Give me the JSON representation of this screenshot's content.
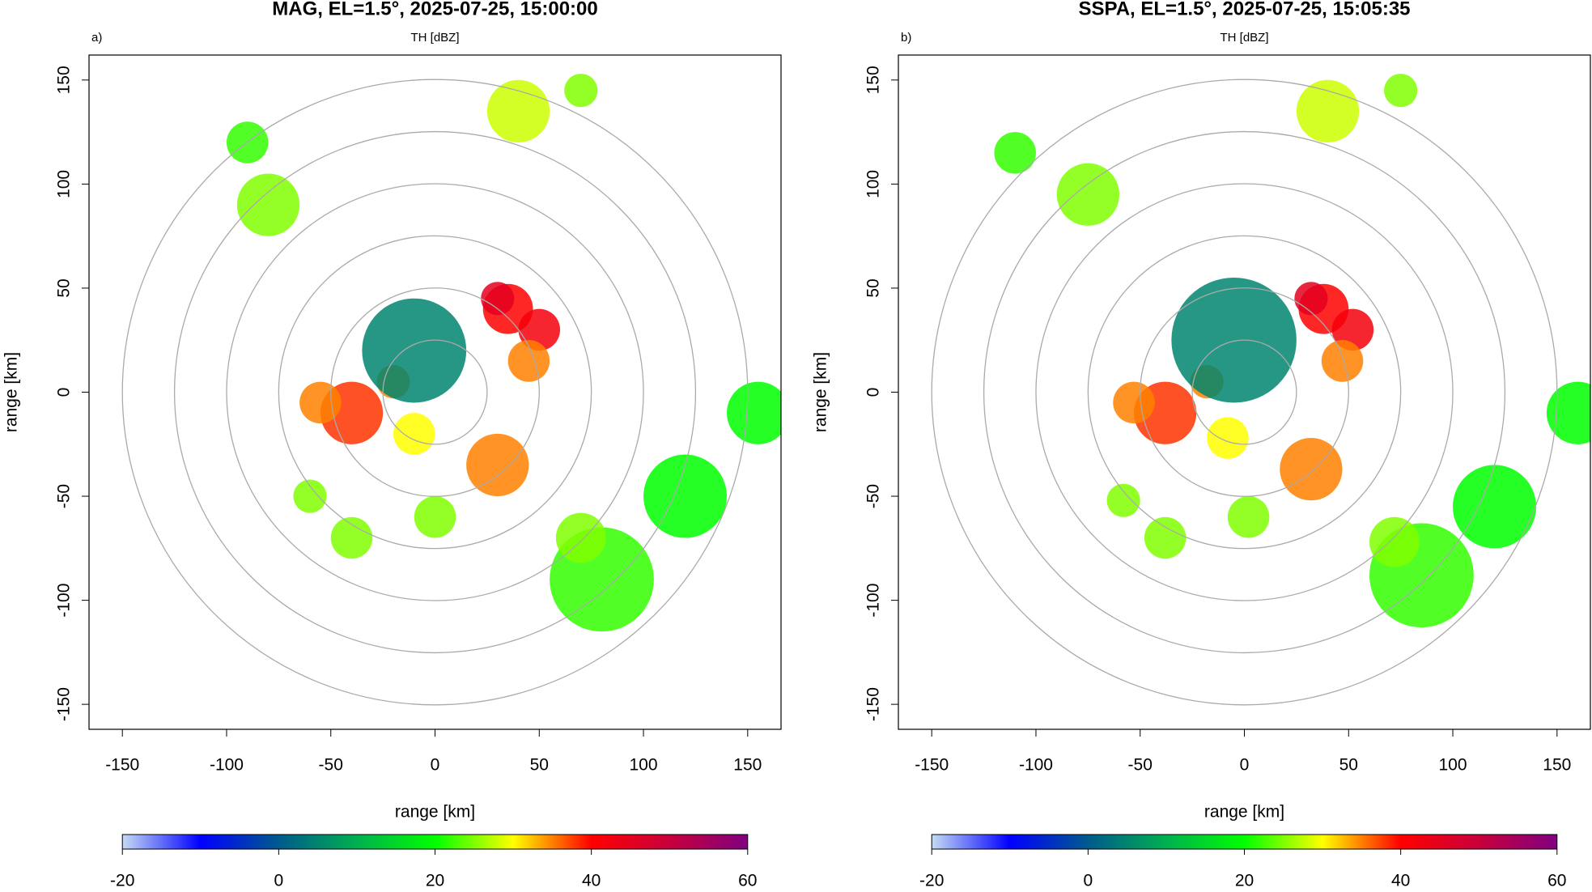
{
  "chart_data": [
    {
      "type": "radar-ppi",
      "title": "MAG, EL=1.5°, 2025-07-25, 15:00:00",
      "panel_label": "a)",
      "subtitle": "TH [dBZ]",
      "xlabel": "range [km]",
      "ylabel": "range [km]",
      "xlim": [
        -166,
        166
      ],
      "ylim": [
        -162,
        162
      ],
      "xticks": [
        -150,
        -100,
        -50,
        0,
        50,
        100,
        150
      ],
      "yticks": [
        -150,
        -100,
        -50,
        0,
        50,
        100,
        150
      ],
      "rings": [
        25,
        50,
        75,
        100,
        125,
        150
      ],
      "cells": {
        "x": [
          35,
          30,
          50,
          45,
          -20,
          -40,
          -55,
          -10,
          30,
          80,
          70,
          -40,
          0,
          -80,
          -90,
          40,
          70,
          120,
          155,
          -60,
          -10
        ],
        "y": [
          40,
          45,
          30,
          15,
          5,
          -10,
          -5,
          -20,
          -35,
          -90,
          -70,
          -70,
          -60,
          90,
          120,
          135,
          145,
          -50,
          -10,
          -50,
          20
        ],
        "size": [
          12,
          8,
          10,
          10,
          8,
          15,
          10,
          10,
          15,
          25,
          12,
          10,
          10,
          15,
          10,
          15,
          8,
          20,
          15,
          8,
          25
        ],
        "dbz": [
          40,
          45,
          42,
          35,
          35,
          38,
          35,
          30,
          35,
          22,
          25,
          25,
          25,
          25,
          22,
          28,
          25,
          20,
          20,
          25,
          5
        ]
      },
      "colorbar": {
        "lim": [
          -20,
          60
        ],
        "ticks": [
          -20,
          0,
          20,
          40,
          60
        ],
        "colors": [
          "#c5dbf3",
          "#0000ff",
          "#005a8c",
          "#00b050",
          "#00ff00",
          "#ffff00",
          "#ff0000",
          "#c8003c",
          "#800080"
        ]
      }
    },
    {
      "type": "radar-ppi",
      "title": "SSPA, EL=1.5°, 2025-07-25, 15:05:35",
      "panel_label": "b)",
      "subtitle": "TH [dBZ]",
      "xlabel": "range [km]",
      "ylabel": "range [km]",
      "xlim": [
        -166,
        166
      ],
      "ylim": [
        -162,
        162
      ],
      "xticks": [
        -150,
        -100,
        -50,
        0,
        50,
        100,
        150
      ],
      "yticks": [
        -150,
        -100,
        -50,
        0,
        50,
        100,
        150
      ],
      "rings": [
        25,
        50,
        75,
        100,
        125,
        150
      ],
      "cells": {
        "x": [
          38,
          32,
          52,
          47,
          -18,
          -38,
          -53,
          -8,
          32,
          85,
          72,
          -38,
          2,
          -75,
          -110,
          40,
          75,
          120,
          160,
          -58,
          -5
        ],
        "y": [
          40,
          45,
          30,
          15,
          5,
          -10,
          -5,
          -22,
          -37,
          -88,
          -72,
          -70,
          -60,
          95,
          115,
          135,
          145,
          -55,
          -10,
          -52,
          25
        ],
        "size": [
          12,
          8,
          10,
          10,
          8,
          15,
          10,
          10,
          15,
          25,
          12,
          10,
          10,
          15,
          10,
          15,
          8,
          20,
          15,
          8,
          30
        ],
        "dbz": [
          40,
          45,
          42,
          35,
          35,
          38,
          35,
          30,
          35,
          22,
          25,
          25,
          25,
          25,
          22,
          28,
          25,
          20,
          20,
          25,
          5
        ]
      },
      "colorbar": {
        "lim": [
          -20,
          60
        ],
        "ticks": [
          -20,
          0,
          20,
          40,
          60
        ],
        "colors": [
          "#c5dbf3",
          "#0000ff",
          "#005a8c",
          "#00b050",
          "#00ff00",
          "#ffff00",
          "#ff0000",
          "#c8003c",
          "#800080"
        ]
      }
    }
  ]
}
